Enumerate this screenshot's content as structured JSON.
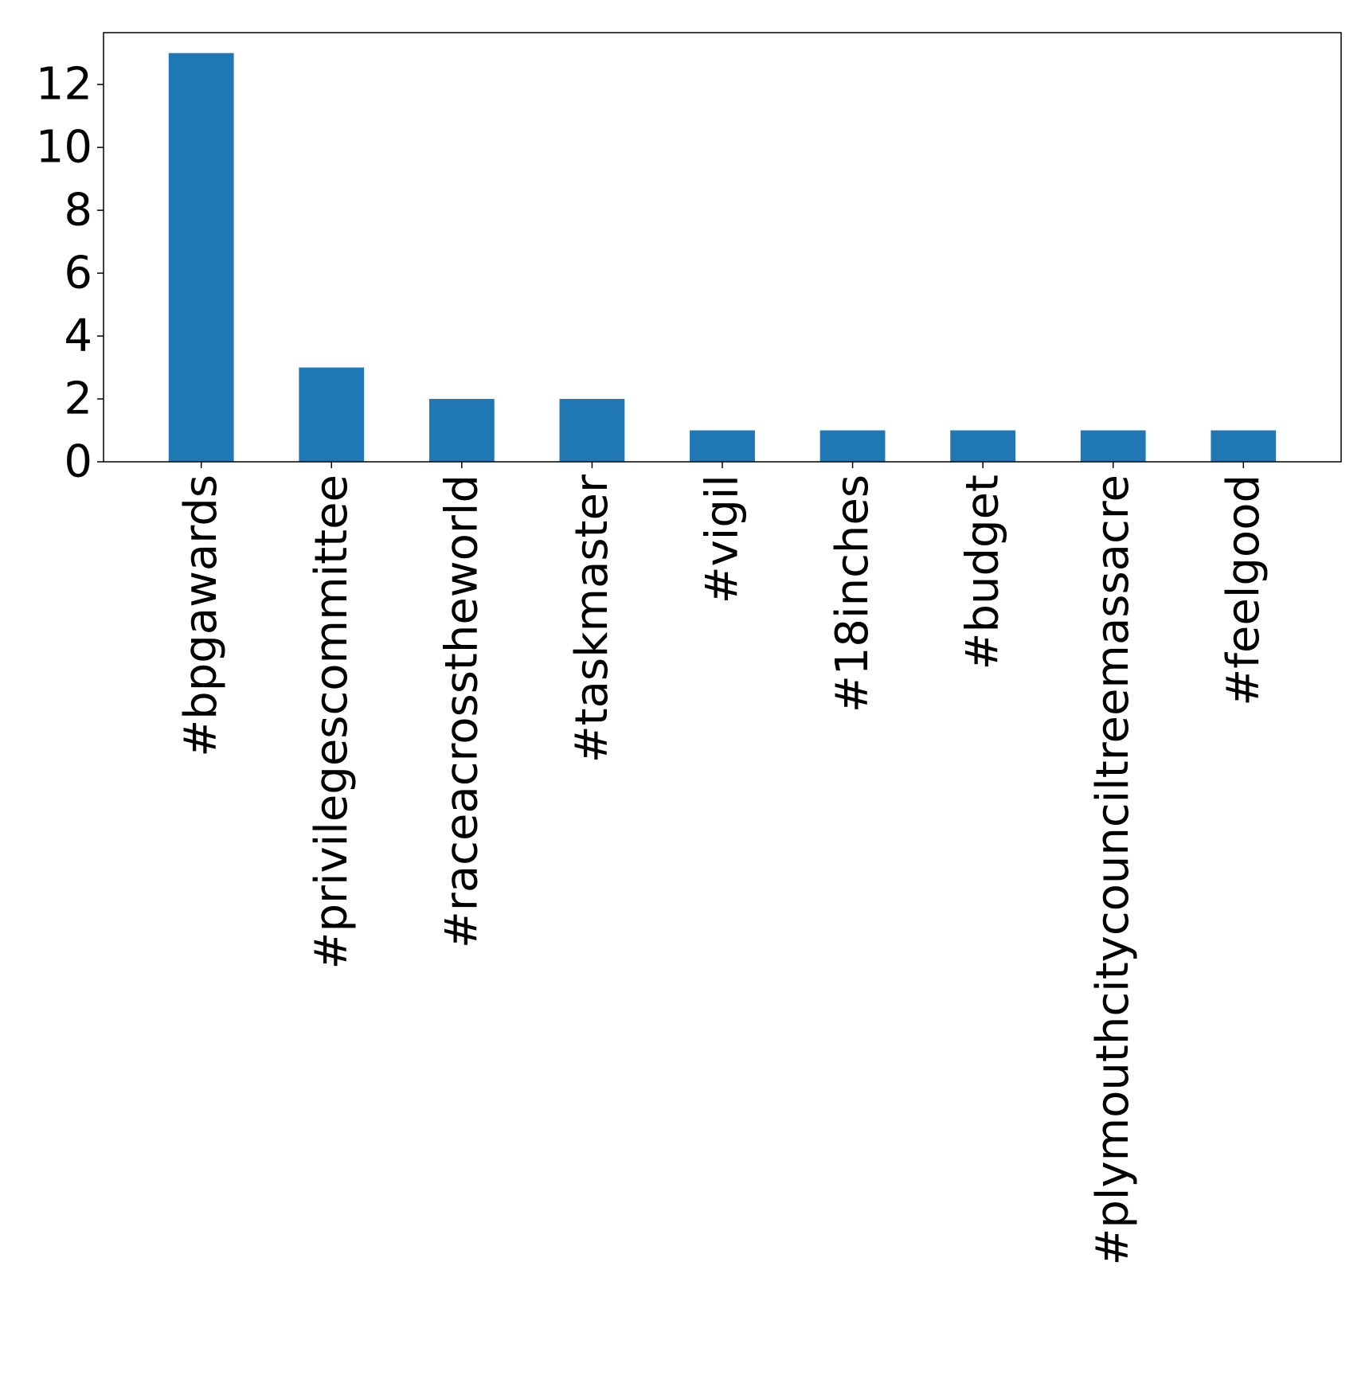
{
  "chart_data": {
    "type": "bar",
    "categories": [
      "#bpgawards",
      "#privilegescommittee",
      "#raceacrosstheworld",
      "#taskmaster",
      "#vigil",
      "#18inches",
      "#budget",
      "#plymouthcitycounciltreemassacre",
      "#feelgood"
    ],
    "values": [
      13,
      3,
      2,
      2,
      1,
      1,
      1,
      1,
      1
    ],
    "title": "",
    "xlabel": "",
    "ylabel": "",
    "ylim": [
      0,
      13.65
    ],
    "yticks": [
      0,
      2,
      4,
      6,
      8,
      10,
      12
    ],
    "grid": false,
    "legend": "none",
    "bar_color": "#1f77b4"
  }
}
